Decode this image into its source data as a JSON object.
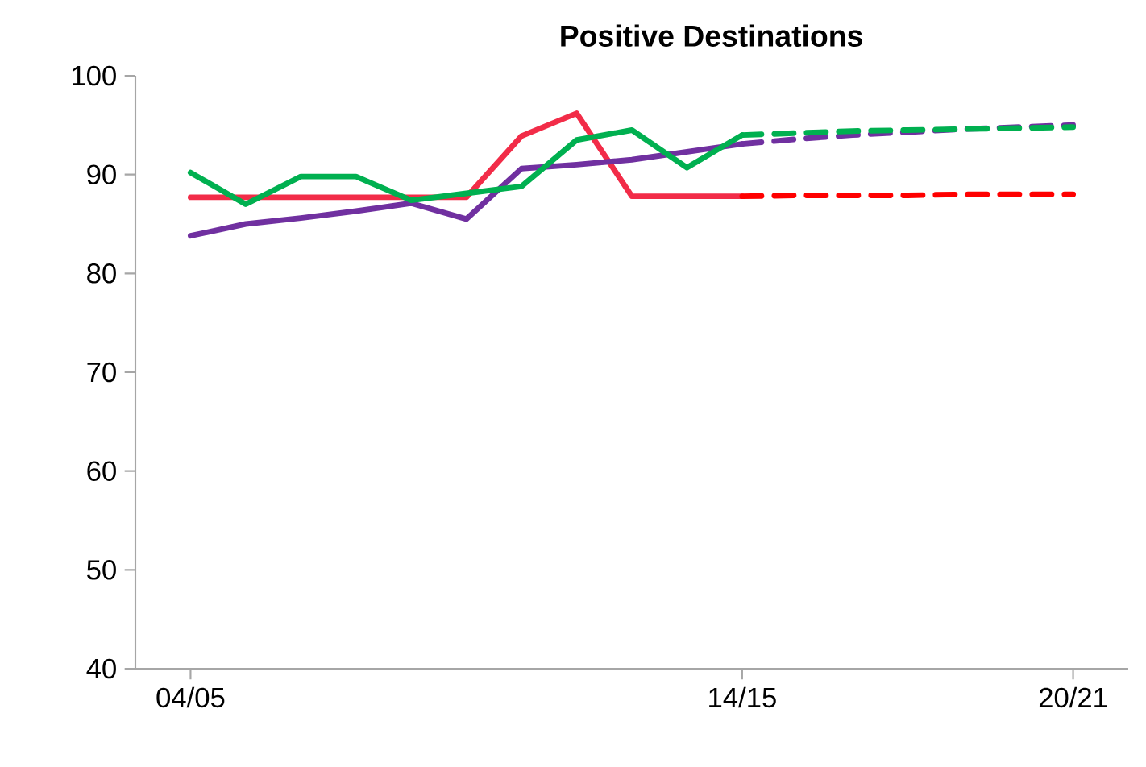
{
  "chart_data": {
    "type": "line",
    "title": "Positive Destinations",
    "categories": [
      "04/05",
      null,
      null,
      null,
      null,
      null,
      null,
      null,
      null,
      null,
      "14/15",
      null,
      null,
      null,
      null,
      null,
      "20/21"
    ],
    "series": [
      {
        "color": "#f22c48",
        "line_style": "solid",
        "values": [
          87.7,
          87.7,
          87.7,
          87.7,
          87.7,
          87.7,
          93.9,
          96.2,
          87.8,
          87.8,
          87.8,
          null,
          null,
          null,
          null,
          null,
          null
        ]
      },
      {
        "color": "#7030a0",
        "line_style": "solid",
        "values": [
          83.8,
          85.0,
          85.6,
          86.3,
          87.1,
          85.5,
          90.6,
          91.0,
          91.5,
          92.3,
          93.1,
          null,
          null,
          null,
          null,
          null,
          null
        ]
      },
      {
        "color": "#00b050",
        "line_style": "solid",
        "values": [
          90.2,
          87.0,
          89.8,
          89.8,
          87.4,
          88.1,
          88.8,
          93.5,
          94.5,
          90.7,
          94.0,
          null,
          null,
          null,
          null,
          null,
          null
        ]
      },
      {
        "color": "#ff0000",
        "line_style": "dashed",
        "values": [
          null,
          null,
          null,
          null,
          null,
          null,
          null,
          null,
          null,
          null,
          87.8,
          87.9,
          87.9,
          87.9,
          88.0,
          88.0,
          88.0
        ]
      },
      {
        "color": "#7030a0",
        "line_style": "dashed",
        "values": [
          null,
          null,
          null,
          null,
          null,
          null,
          null,
          null,
          null,
          null,
          93.1,
          93.6,
          94.0,
          94.3,
          94.6,
          94.8,
          95.0
        ]
      },
      {
        "color": "#00b050",
        "line_style": "dashed",
        "values": [
          null,
          null,
          null,
          null,
          null,
          null,
          null,
          null,
          null,
          null,
          94.0,
          94.2,
          94.4,
          94.5,
          94.6,
          94.7,
          94.8
        ]
      }
    ],
    "ylim": [
      40,
      100
    ],
    "yticks": [
      40,
      50,
      60,
      70,
      80,
      90,
      100
    ],
    "grid": false,
    "marker": "none"
  }
}
